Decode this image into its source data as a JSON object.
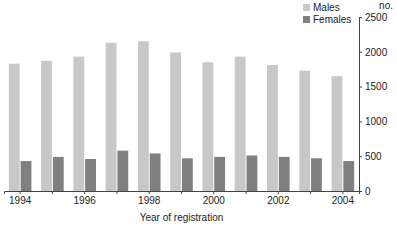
{
  "chart_data": {
    "type": "bar",
    "x_label": "Year of registration",
    "y_label": "no.",
    "categories": [
      "1994",
      null,
      "1996",
      null,
      "1998",
      null,
      "2000",
      null,
      "2002",
      null,
      "2004"
    ],
    "series": [
      {
        "name": "Males",
        "color": "#c8c8c8",
        "values": [
          1830,
          1870,
          1930,
          2130,
          2150,
          1990,
          1850,
          1930,
          1810,
          1730,
          1650
        ]
      },
      {
        "name": "Females",
        "color": "#808080",
        "values": [
          430,
          490,
          460,
          580,
          540,
          470,
          490,
          510,
          490,
          470,
          430
        ]
      }
    ],
    "ylim": [
      0,
      2500
    ],
    "yticks": [
      0,
      500,
      1000,
      1500,
      2000,
      2500
    ],
    "legend": "top-right",
    "grid": false
  }
}
